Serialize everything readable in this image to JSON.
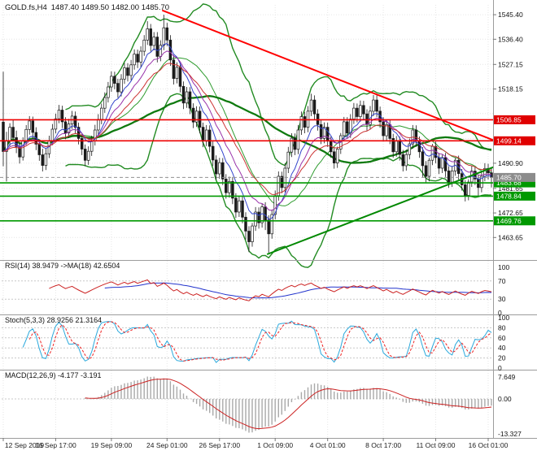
{
  "header": {
    "symbol": "GOLD.fs,H4",
    "ohlc": "1487.40 1489.50 1482.00 1485.70"
  },
  "chart_data": {
    "type": "candlestick",
    "symbol": "GOLD.fs",
    "timeframe": "H4",
    "open": 1487.4,
    "high": 1489.5,
    "low": 1482.0,
    "close": 1485.7,
    "price_range": [
      1456,
      1549
    ],
    "y_ticks": [
      {
        "p": 1545.4,
        "t": "1545.40"
      },
      {
        "p": 1536.4,
        "t": "1536.40"
      },
      {
        "p": 1527.15,
        "t": "1527.15"
      },
      {
        "p": 1518.15,
        "t": "1518.15"
      },
      {
        "p": 1490.9,
        "t": "1490.90"
      },
      {
        "p": 1481.65,
        "t": "1481.65"
      },
      {
        "p": 1472.65,
        "t": "1472.65"
      },
      {
        "p": 1463.65,
        "t": "1463.65"
      }
    ],
    "grid_prices": [
      1545.4,
      1536.4,
      1527.15,
      1518.15,
      1509.15,
      1500.0,
      1490.9,
      1481.65,
      1472.65,
      1463.65
    ],
    "time_labels": [
      {
        "i": 0,
        "t": "12 Sep 2019"
      },
      {
        "i": 16,
        "t": "16 Sep 17:00"
      },
      {
        "i": 33,
        "t": "19 Sep 09:00"
      },
      {
        "i": 50,
        "t": "24 Sep 01:00"
      },
      {
        "i": 66,
        "t": "26 Sep 17:00"
      },
      {
        "i": 83,
        "t": "1 Oct 09:00"
      },
      {
        "i": 99,
        "t": "4 Oct 01:00"
      },
      {
        "i": 116,
        "t": "8 Oct 17:00"
      },
      {
        "i": 132,
        "t": "11 Oct 09:00"
      },
      {
        "i": 148,
        "t": "16 Oct 01:00"
      }
    ],
    "levels": [
      {
        "price": 1506.85,
        "label": "1506.85",
        "color": "#EE0000",
        "badge": "#E00000",
        "name": "resistance-level-1506"
      },
      {
        "price": 1499.14,
        "label": "1499.14",
        "color": "#EE0000",
        "badge": "#E00000",
        "name": "resistance-level-1499"
      },
      {
        "price": 1483.68,
        "label": "1483.68",
        "color": "#009900",
        "badge": "#009900",
        "name": "support-level-1483"
      },
      {
        "price": 1478.84,
        "label": "1478.84",
        "color": "#009900",
        "badge": "#009900",
        "name": "support-level-1478"
      },
      {
        "price": 1469.76,
        "label": "1469.76",
        "color": "#009900",
        "badge": "#009900",
        "name": "support-level-1469"
      }
    ],
    "bid": {
      "price": 1485.7,
      "label": "1485.70",
      "badge": "#8C8C8C"
    },
    "trendlines": [
      {
        "i1": 48.5,
        "p1": 1547.0,
        "i2": 149.7,
        "p2": 1499.3,
        "color": "#FF0000",
        "w": 2,
        "name": "descending-trendline"
      },
      {
        "i1": 80.5,
        "p1": 1457.5,
        "i2": 149.7,
        "p2": 1489.5,
        "color": "#008800",
        "w": 2,
        "name": "ascending-trendline"
      }
    ],
    "overlays": {
      "bollinger": {
        "period": 20,
        "dev": 2,
        "color": "#228B22"
      },
      "slow_ma": {
        "period": 50,
        "color": "#0F7A0F"
      },
      "ma_fan": [
        {
          "period": 8,
          "color": "#3344CC"
        },
        {
          "period": 13,
          "color": "#9933AA"
        },
        {
          "period": 21,
          "color": "#CC3333"
        }
      ]
    },
    "indicator_panels": {
      "rsi": {
        "label": "RSI(14) 38.9479 ->MA(18) 42.6504",
        "period": 14,
        "ma_period": 18,
        "value": 38.9479,
        "ma_value": 42.6504,
        "levels": [
          70,
          30
        ],
        "scale_labels": [
          {
            "v": 100,
            "t": "100"
          },
          {
            "v": 70,
            "t": "70"
          },
          {
            "v": 30,
            "t": "30"
          },
          {
            "v": 0,
            "t": "0"
          }
        ],
        "line_color": "#CC2222",
        "ma_color": "#2233CC"
      },
      "stoch": {
        "label": "Stoch(5,3,3) 28.9256 21.3164",
        "k": 5,
        "slowing": 3,
        "d": 3,
        "k_value": 28.9256,
        "d_value": 21.3164,
        "levels": [
          80,
          60,
          40,
          20
        ],
        "scale_labels": [
          {
            "v": 100,
            "t": "100"
          },
          {
            "v": 80,
            "t": "80"
          },
          {
            "v": 60,
            "t": "60"
          },
          {
            "v": 40,
            "t": "40"
          },
          {
            "v": 20,
            "t": "20"
          },
          {
            "v": 0,
            "t": "0"
          }
        ],
        "k_color": "#29A8DC",
        "d_color": "#EE2222"
      },
      "macd": {
        "label": "MACD(12,26,9) -4.177 -3.191",
        "fast": 12,
        "slow": 26,
        "signal": 9,
        "value": -4.177,
        "signal_value": -3.191,
        "scale_labels": {
          "max": "7.649",
          "zero": "0.00",
          "min": "-13.327"
        },
        "hist_color": "#A9A9A9",
        "signal_color": "#CC2222"
      }
    },
    "candles": [
      [
        1506.0,
        1524.5,
        1489.8,
        1495.2
      ],
      [
        1495.2,
        1502.4,
        1484.2,
        1499.0
      ],
      [
        1499.0,
        1505.6,
        1497.2,
        1504.1
      ],
      [
        1504.1,
        1506.8,
        1498.9,
        1500.3
      ],
      [
        1500.3,
        1502.9,
        1494.6,
        1497.0
      ],
      [
        1497.0,
        1498.8,
        1490.8,
        1493.2
      ],
      [
        1493.2,
        1500.4,
        1491.9,
        1499.1
      ],
      [
        1499.1,
        1504.9,
        1497.6,
        1503.3
      ],
      [
        1503.3,
        1508.2,
        1501.4,
        1506.4
      ],
      [
        1506.4,
        1508.0,
        1499.9,
        1502.2
      ],
      [
        1502.2,
        1504.1,
        1495.7,
        1497.9
      ],
      [
        1497.9,
        1499.6,
        1491.8,
        1494.0
      ],
      [
        1494.0,
        1496.2,
        1487.9,
        1490.1
      ],
      [
        1490.1,
        1496.3,
        1488.4,
        1494.4
      ],
      [
        1494.4,
        1501.0,
        1492.8,
        1499.2
      ],
      [
        1499.2,
        1505.3,
        1497.5,
        1503.4
      ],
      [
        1503.4,
        1509.1,
        1501.8,
        1507.2
      ],
      [
        1507.2,
        1512.3,
        1505.6,
        1510.4
      ],
      [
        1510.4,
        1512.0,
        1503.8,
        1506.1
      ],
      [
        1506.1,
        1507.8,
        1499.7,
        1502.0
      ],
      [
        1502.0,
        1507.2,
        1500.2,
        1505.3
      ],
      [
        1505.3,
        1510.1,
        1503.5,
        1508.2
      ],
      [
        1508.2,
        1509.9,
        1501.9,
        1504.1
      ],
      [
        1504.1,
        1505.8,
        1497.8,
        1500.0
      ],
      [
        1500.0,
        1501.7,
        1493.9,
        1496.1
      ],
      [
        1496.1,
        1497.8,
        1489.8,
        1492.0
      ],
      [
        1492.0,
        1497.1,
        1490.3,
        1495.3
      ],
      [
        1495.3,
        1501.0,
        1493.6,
        1499.2
      ],
      [
        1499.2,
        1505.0,
        1497.4,
        1503.1
      ],
      [
        1503.1,
        1508.9,
        1501.3,
        1507.0
      ],
      [
        1507.0,
        1512.8,
        1505.2,
        1511.1
      ],
      [
        1511.1,
        1516.9,
        1509.4,
        1515.0
      ],
      [
        1515.0,
        1520.7,
        1513.2,
        1518.9
      ],
      [
        1518.9,
        1524.6,
        1517.1,
        1522.8
      ],
      [
        1522.8,
        1524.5,
        1518.1,
        1520.2
      ],
      [
        1520.2,
        1521.9,
        1514.9,
        1517.1
      ],
      [
        1517.1,
        1523.6,
        1515.4,
        1521.8
      ],
      [
        1521.8,
        1527.7,
        1520.0,
        1525.9
      ],
      [
        1525.9,
        1527.6,
        1520.9,
        1523.1
      ],
      [
        1523.1,
        1528.8,
        1521.3,
        1527.0
      ],
      [
        1527.0,
        1532.7,
        1525.2,
        1530.9
      ],
      [
        1530.9,
        1532.6,
        1525.8,
        1528.0
      ],
      [
        1528.0,
        1533.8,
        1526.2,
        1532.0
      ],
      [
        1532.0,
        1537.9,
        1530.3,
        1536.1
      ],
      [
        1536.1,
        1543.0,
        1534.3,
        1540.2
      ],
      [
        1540.2,
        1542.0,
        1531.9,
        1534.1
      ],
      [
        1534.1,
        1539.0,
        1532.3,
        1537.2
      ],
      [
        1537.2,
        1539.0,
        1527.9,
        1530.1
      ],
      [
        1530.1,
        1536.0,
        1528.3,
        1534.2
      ],
      [
        1534.2,
        1545.4,
        1532.4,
        1540.6
      ],
      [
        1540.6,
        1542.4,
        1533.9,
        1536.1
      ],
      [
        1536.1,
        1537.9,
        1526.6,
        1528.8
      ],
      [
        1528.8,
        1530.6,
        1519.8,
        1522.0
      ],
      [
        1522.0,
        1527.9,
        1520.2,
        1526.1
      ],
      [
        1526.1,
        1527.8,
        1516.9,
        1519.1
      ],
      [
        1519.1,
        1520.9,
        1510.8,
        1513.0
      ],
      [
        1513.0,
        1518.9,
        1511.2,
        1517.1
      ],
      [
        1517.1,
        1518.8,
        1508.9,
        1511.1
      ],
      [
        1511.1,
        1512.9,
        1503.8,
        1506.0
      ],
      [
        1506.0,
        1511.8,
        1504.2,
        1510.0
      ],
      [
        1510.0,
        1511.7,
        1501.9,
        1504.1
      ],
      [
        1504.1,
        1505.8,
        1496.8,
        1499.0
      ],
      [
        1499.0,
        1504.9,
        1497.2,
        1503.1
      ],
      [
        1503.1,
        1504.8,
        1494.9,
        1497.1
      ],
      [
        1497.1,
        1498.9,
        1489.9,
        1492.1
      ],
      [
        1492.1,
        1493.8,
        1484.8,
        1487.0
      ],
      [
        1487.0,
        1492.9,
        1485.2,
        1491.1
      ],
      [
        1491.1,
        1492.8,
        1482.9,
        1485.1
      ],
      [
        1485.1,
        1486.9,
        1477.9,
        1480.1
      ],
      [
        1480.1,
        1486.0,
        1478.3,
        1484.2
      ],
      [
        1484.2,
        1485.9,
        1475.9,
        1478.1
      ],
      [
        1478.1,
        1479.9,
        1470.8,
        1473.0
      ],
      [
        1473.0,
        1478.9,
        1471.2,
        1477.1
      ],
      [
        1477.1,
        1478.8,
        1468.9,
        1471.1
      ],
      [
        1471.1,
        1472.9,
        1462.9,
        1466.0
      ],
      [
        1466.0,
        1467.8,
        1458.3,
        1462.1
      ],
      [
        1462.1,
        1469.0,
        1460.3,
        1467.9
      ],
      [
        1467.9,
        1474.8,
        1466.1,
        1473.0
      ],
      [
        1473.0,
        1474.7,
        1466.9,
        1469.1
      ],
      [
        1469.1,
        1476.0,
        1467.3,
        1474.9
      ],
      [
        1474.9,
        1476.6,
        1466.4,
        1470.1
      ],
      [
        1470.1,
        1471.8,
        1458.1,
        1465.0
      ],
      [
        1465.0,
        1473.9,
        1463.2,
        1472.1
      ],
      [
        1472.1,
        1480.9,
        1470.3,
        1479.0
      ],
      [
        1479.0,
        1487.9,
        1477.2,
        1486.1
      ],
      [
        1486.1,
        1487.8,
        1479.9,
        1482.0
      ],
      [
        1482.0,
        1490.9,
        1480.2,
        1489.1
      ],
      [
        1489.1,
        1496.9,
        1487.3,
        1495.0
      ],
      [
        1495.0,
        1501.9,
        1493.2,
        1500.1
      ],
      [
        1500.1,
        1501.8,
        1493.9,
        1496.0
      ],
      [
        1496.0,
        1504.9,
        1494.2,
        1503.1
      ],
      [
        1503.1,
        1509.9,
        1501.3,
        1508.0
      ],
      [
        1508.0,
        1509.7,
        1501.9,
        1504.1
      ],
      [
        1504.1,
        1511.9,
        1502.3,
        1510.0
      ],
      [
        1510.0,
        1516.4,
        1508.2,
        1514.1
      ],
      [
        1514.1,
        1515.8,
        1506.9,
        1509.0
      ],
      [
        1509.0,
        1510.7,
        1502.9,
        1505.1
      ],
      [
        1505.1,
        1506.8,
        1497.9,
        1500.0
      ],
      [
        1500.0,
        1505.9,
        1498.2,
        1504.1
      ],
      [
        1504.1,
        1505.8,
        1496.9,
        1499.0
      ],
      [
        1499.0,
        1500.7,
        1492.9,
        1495.1
      ],
      [
        1495.1,
        1496.8,
        1488.9,
        1491.0
      ],
      [
        1491.0,
        1497.0,
        1489.2,
        1496.1
      ],
      [
        1496.1,
        1502.0,
        1494.3,
        1501.0
      ],
      [
        1501.0,
        1507.9,
        1499.2,
        1506.1
      ],
      [
        1506.1,
        1507.8,
        1499.9,
        1502.0
      ],
      [
        1502.0,
        1508.9,
        1500.2,
        1507.1
      ],
      [
        1507.1,
        1513.0,
        1505.3,
        1511.1
      ],
      [
        1511.1,
        1512.8,
        1505.9,
        1508.0
      ],
      [
        1508.0,
        1513.9,
        1506.2,
        1512.1
      ],
      [
        1512.1,
        1513.8,
        1506.9,
        1509.0
      ],
      [
        1509.0,
        1510.7,
        1502.9,
        1505.1
      ],
      [
        1505.1,
        1511.9,
        1503.3,
        1510.0
      ],
      [
        1510.0,
        1515.9,
        1508.2,
        1514.1
      ],
      [
        1514.1,
        1515.8,
        1507.9,
        1510.0
      ],
      [
        1510.0,
        1511.7,
        1503.9,
        1506.1
      ],
      [
        1506.1,
        1507.8,
        1498.9,
        1501.0
      ],
      [
        1501.0,
        1506.9,
        1499.2,
        1505.1
      ],
      [
        1505.1,
        1506.8,
        1497.9,
        1500.0
      ],
      [
        1500.0,
        1501.7,
        1492.9,
        1495.1
      ],
      [
        1495.1,
        1500.9,
        1493.3,
        1499.0
      ],
      [
        1499.0,
        1500.7,
        1491.9,
        1494.1
      ],
      [
        1494.1,
        1495.8,
        1487.9,
        1490.0
      ],
      [
        1490.0,
        1495.9,
        1488.2,
        1494.1
      ],
      [
        1494.1,
        1499.9,
        1492.3,
        1498.0
      ],
      [
        1498.0,
        1504.9,
        1496.2,
        1503.1
      ],
      [
        1503.1,
        1504.8,
        1496.9,
        1499.0
      ],
      [
        1499.0,
        1500.7,
        1492.9,
        1495.1
      ],
      [
        1495.1,
        1496.8,
        1485.9,
        1490.0
      ],
      [
        1490.0,
        1491.7,
        1483.9,
        1486.1
      ],
      [
        1486.1,
        1492.9,
        1484.3,
        1492.0
      ],
      [
        1492.0,
        1498.0,
        1490.2,
        1497.1
      ],
      [
        1497.1,
        1498.8,
        1490.9,
        1493.0
      ],
      [
        1493.0,
        1494.7,
        1486.9,
        1489.1
      ],
      [
        1489.1,
        1494.0,
        1487.3,
        1493.0
      ],
      [
        1493.0,
        1494.7,
        1485.9,
        1488.1
      ],
      [
        1488.1,
        1489.8,
        1481.9,
        1484.0
      ],
      [
        1484.0,
        1489.9,
        1482.2,
        1488.1
      ],
      [
        1488.1,
        1493.0,
        1486.3,
        1492.0
      ],
      [
        1492.0,
        1493.7,
        1484.9,
        1487.1
      ],
      [
        1487.1,
        1488.8,
        1480.9,
        1483.0
      ],
      [
        1483.0,
        1484.7,
        1476.9,
        1479.1
      ],
      [
        1479.1,
        1485.0,
        1477.3,
        1484.0
      ],
      [
        1484.0,
        1489.9,
        1482.2,
        1488.0
      ],
      [
        1488.0,
        1489.7,
        1482.9,
        1485.1
      ],
      [
        1485.1,
        1486.8,
        1478.9,
        1482.0
      ],
      [
        1482.0,
        1487.9,
        1480.2,
        1486.1
      ],
      [
        1486.1,
        1490.9,
        1484.3,
        1489.0
      ],
      [
        1489.0,
        1490.7,
        1484.9,
        1487.4
      ],
      [
        1487.4,
        1489.5,
        1482.0,
        1485.7
      ]
    ]
  }
}
